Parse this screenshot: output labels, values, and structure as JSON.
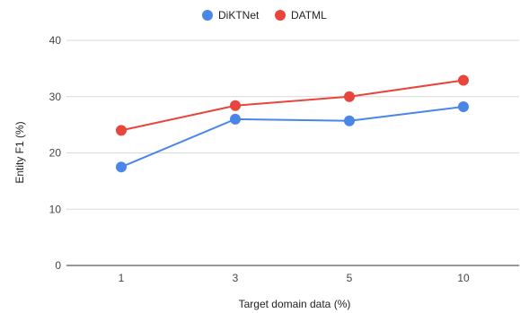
{
  "chart_data": {
    "type": "line",
    "title": "",
    "xlabel": "Target domain data (%)",
    "ylabel": "Entity F1 (%)",
    "categories": [
      "1",
      "3",
      "5",
      "10"
    ],
    "yticks": [
      "0",
      "10",
      "20",
      "30",
      "40"
    ],
    "ylim": [
      0,
      40
    ],
    "grid": true,
    "legend_position": "top",
    "series": [
      {
        "name": "DiKTNet",
        "color": "#4a86e8",
        "values": [
          17.5,
          26.0,
          25.7,
          28.2
        ]
      },
      {
        "name": "DATML",
        "color": "#e8453c",
        "values": [
          24.0,
          28.4,
          30.0,
          32.9
        ]
      }
    ]
  }
}
